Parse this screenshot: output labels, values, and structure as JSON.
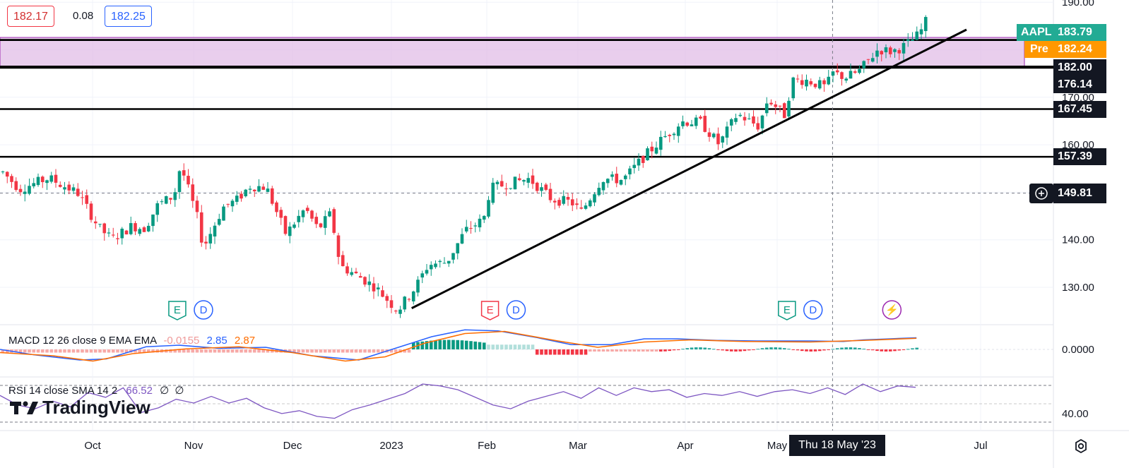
{
  "header": {
    "bid": "182.17",
    "spread": "0.08",
    "ask": "182.25"
  },
  "price_tags": {
    "symbol": "AAPL",
    "last": "183.79",
    "pre_label": "Pre",
    "pre_value": "182.24",
    "levels": [
      "182.00",
      "176.14",
      "167.45",
      "157.39"
    ],
    "crosshair": "149.81"
  },
  "macd_legend": {
    "label": "MACD 12 26 close 9 EMA EMA",
    "hist": "-0.0155",
    "macd": "2.85",
    "signal": "2.87"
  },
  "rsi_legend": {
    "label": "RSI 14 close SMA 14 2",
    "value": "66.52",
    "na1": "∅",
    "na2": "∅"
  },
  "logo_text": "TradingView",
  "crosshair_date": "Thu 18 May '23",
  "colors": {
    "up": "#089981",
    "down": "#f23645",
    "macd": "#2962ff",
    "signal": "#ff6d00",
    "rsi": "#7e57c2",
    "zone": "#e1bee7",
    "symbol_tag": "#22ab94",
    "pre_tag": "#ff9800"
  },
  "chart_data": [
    {
      "type": "candlestick",
      "title": "",
      "x_ticks": [
        "Oct",
        "Nov",
        "Dec",
        "2023",
        "Feb",
        "Mar",
        "Apr",
        "May",
        "Jul"
      ],
      "y_ticks": [
        130.0,
        140.0,
        150.0,
        160.0,
        170.0,
        180.0,
        190.0
      ],
      "y_range": [
        122,
        190
      ],
      "close_path": [
        [
          "2022-09-13",
          153.8
        ],
        [
          "2022-09-16",
          150.7
        ],
        [
          "2022-09-22",
          153.0
        ],
        [
          "2022-09-28",
          149.8
        ],
        [
          "2022-10-03",
          142.5
        ],
        [
          "2022-10-07",
          140.1
        ],
        [
          "2022-10-13",
          142.9
        ],
        [
          "2022-10-17",
          142.4
        ],
        [
          "2022-10-21",
          147.3
        ],
        [
          "2022-10-26",
          149.3
        ],
        [
          "2022-10-28",
          155.7
        ],
        [
          "2022-11-02",
          145.0
        ],
        [
          "2022-11-04",
          138.4
        ],
        [
          "2022-11-10",
          146.9
        ],
        [
          "2022-11-14",
          148.3
        ],
        [
          "2022-11-18",
          151.3
        ],
        [
          "2022-11-23",
          151.1
        ],
        [
          "2022-11-29",
          141.2
        ],
        [
          "2022-12-05",
          146.6
        ],
        [
          "2022-12-09",
          142.2
        ],
        [
          "2022-12-13",
          145.5
        ],
        [
          "2022-12-16",
          134.5
        ],
        [
          "2022-12-22",
          132.2
        ],
        [
          "2022-12-27",
          130.0
        ],
        [
          "2023-01-03",
          125.1
        ],
        [
          "2023-01-09",
          130.2
        ],
        [
          "2023-01-13",
          134.8
        ],
        [
          "2023-01-19",
          135.3
        ],
        [
          "2023-01-25",
          141.9
        ],
        [
          "2023-01-31",
          144.3
        ],
        [
          "2023-02-02",
          150.8
        ],
        [
          "2023-02-08",
          151.9
        ],
        [
          "2023-02-14",
          152.9
        ],
        [
          "2023-02-21",
          148.5
        ],
        [
          "2023-02-27",
          147.9
        ],
        [
          "2023-03-02",
          145.9
        ],
        [
          "2023-03-08",
          152.9
        ],
        [
          "2023-03-14",
          152.6
        ],
        [
          "2023-03-20",
          157.4
        ],
        [
          "2023-03-24",
          160.3
        ],
        [
          "2023-03-31",
          164.9
        ],
        [
          "2023-04-06",
          164.7
        ],
        [
          "2023-04-12",
          160.1
        ],
        [
          "2023-04-18",
          166.5
        ],
        [
          "2023-04-25",
          163.8
        ],
        [
          "2023-04-28",
          169.7
        ],
        [
          "2023-05-04",
          165.8
        ],
        [
          "2023-05-05",
          173.6
        ],
        [
          "2023-05-10",
          173.6
        ],
        [
          "2023-05-16",
          172.1
        ],
        [
          "2023-05-18",
          175.1
        ],
        [
          "2023-05-22",
          174.2
        ],
        [
          "2023-05-26",
          175.4
        ],
        [
          "2023-06-01",
          180.1
        ],
        [
          "2023-06-05",
          179.6
        ],
        [
          "2023-06-09",
          180.9
        ],
        [
          "2023-06-13",
          183.3
        ],
        [
          "2023-06-15",
          186.0
        ]
      ],
      "horizontal_levels": [
        182.0,
        176.14,
        167.45,
        157.39
      ],
      "resistance_zone": [
        176.14,
        182.0
      ],
      "trendline": [
        [
          "2023-01-03",
          125.0
        ],
        [
          "2023-06-15",
          182.0
        ],
        [
          "2023-06-30",
          188.0
        ]
      ],
      "event_markers": [
        {
          "label": "E",
          "date": "2022-10-27"
        },
        {
          "label": "D",
          "date": "2022-11-04"
        },
        {
          "label": "E",
          "date": "2023-02-02"
        },
        {
          "label": "D",
          "date": "2023-02-10"
        },
        {
          "label": "E",
          "date": "2023-05-04"
        },
        {
          "label": "D",
          "date": "2023-05-12"
        },
        {
          "label": "⚡",
          "date": "2023-06-05"
        }
      ]
    },
    {
      "type": "line",
      "title": "MACD 12 26 close 9 EMA EMA",
      "y_ticks": [
        0.0
      ],
      "series": [
        {
          "name": "MACD",
          "values": [
            [
              0.0,
              0.0
            ],
            [
              0.05,
              -1.0
            ],
            [
              0.12,
              -2.0
            ],
            [
              0.16,
              -1.8
            ],
            [
              0.22,
              0.5
            ],
            [
              0.27,
              0.8
            ],
            [
              0.33,
              0.2
            ],
            [
              0.4,
              0.4
            ],
            [
              0.47,
              -1.2
            ],
            [
              0.54,
              -2.0
            ],
            [
              0.6,
              0.4
            ],
            [
              0.65,
              2.4
            ],
            [
              0.7,
              3.7
            ],
            [
              0.75,
              3.5
            ],
            [
              0.81,
              2.2
            ],
            [
              0.86,
              0.9
            ],
            [
              0.92,
              0.9
            ],
            [
              0.97,
              2.0
            ],
            [
              1.02,
              2.0
            ],
            [
              1.08,
              1.7
            ],
            [
              1.14,
              1.6
            ],
            [
              1.22,
              1.6
            ],
            [
              1.27,
              1.5
            ],
            [
              1.3,
              1.8
            ],
            [
              1.34,
              2.0
            ],
            [
              1.38,
              2.2
            ]
          ]
        },
        {
          "name": "Signal",
          "values": [
            [
              0.0,
              -0.6
            ],
            [
              0.08,
              -1.2
            ],
            [
              0.14,
              -2.2
            ],
            [
              0.2,
              -0.8
            ],
            [
              0.28,
              0.1
            ],
            [
              0.36,
              0.5
            ],
            [
              0.44,
              -0.6
            ],
            [
              0.52,
              -2.2
            ],
            [
              0.58,
              -1.4
            ],
            [
              0.64,
              1.2
            ],
            [
              0.7,
              3.0
            ],
            [
              0.76,
              3.4
            ],
            [
              0.84,
              1.6
            ],
            [
              0.9,
              0.4
            ],
            [
              0.97,
              1.4
            ],
            [
              1.04,
              1.8
            ],
            [
              1.12,
              1.5
            ],
            [
              1.22,
              1.4
            ],
            [
              1.3,
              1.7
            ],
            [
              1.38,
              2.1
            ]
          ]
        }
      ],
      "histogram_summary": "green bars Jan–Feb, red bars Feb–Mar, small mixed bars after"
    },
    {
      "type": "line",
      "title": "RSI 14 close SMA 14 2",
      "y_ticks": [
        40.0
      ],
      "series": [
        {
          "name": "RSI",
          "values": [
            0.0,
            58,
            48,
            44,
            52,
            46,
            61,
            56,
            66,
            40,
            45,
            54,
            50,
            57,
            50,
            55,
            45,
            39,
            42,
            36,
            34,
            43,
            48,
            54,
            60,
            70,
            68,
            64,
            56,
            48,
            44,
            52,
            57,
            62,
            55,
            66,
            58,
            66,
            62,
            64,
            56,
            60,
            58,
            62,
            57,
            62,
            64,
            60,
            66,
            59,
            70,
            62,
            68,
            66.52
          ]
        }
      ]
    }
  ]
}
